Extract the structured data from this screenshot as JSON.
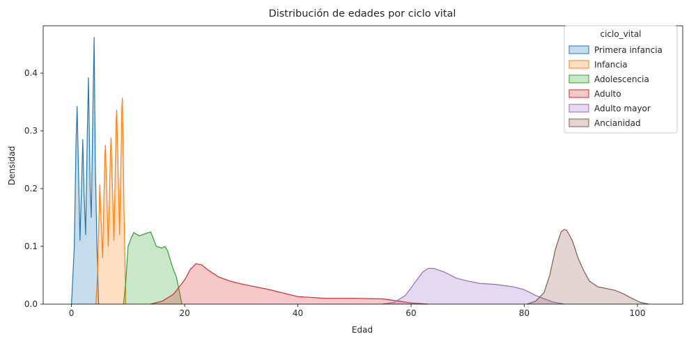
{
  "chart_data": {
    "type": "area",
    "title": "Distribución de edades por ciclo vital",
    "xlabel": "Edad",
    "ylabel": "Densidad",
    "xlim": [
      -5,
      108
    ],
    "ylim": [
      0,
      0.482
    ],
    "xticks": [
      0,
      20,
      40,
      60,
      80,
      100
    ],
    "yticks": [
      0.0,
      0.1,
      0.2,
      0.3,
      0.4
    ],
    "xtick_labels": [
      "0",
      "20",
      "40",
      "60",
      "80",
      "100"
    ],
    "ytick_labels": [
      "0.0",
      "0.1",
      "0.2",
      "0.3",
      "0.4"
    ],
    "grid": false,
    "legend": {
      "title": "ciclo_vital",
      "placement": "top-right"
    },
    "series": [
      {
        "name": "Primera infancia",
        "color": "#1f77b4",
        "x": [
          0.0,
          0.5,
          0.8,
          1.0,
          1.5,
          1.9,
          2.0,
          2.2,
          2.5,
          2.8,
          3.0,
          3.3,
          3.5,
          3.8,
          4.0,
          4.2,
          4.5,
          4.8
        ],
        "y": [
          0.0,
          0.1,
          0.28,
          0.342,
          0.11,
          0.25,
          0.285,
          0.2,
          0.12,
          0.3,
          0.392,
          0.2,
          0.15,
          0.35,
          0.462,
          0.25,
          0.1,
          0.0
        ]
      },
      {
        "name": "Infancia",
        "color": "#ff7f0e",
        "x": [
          4.3,
          4.6,
          5.0,
          5.5,
          5.9,
          6.0,
          6.5,
          6.9,
          7.0,
          7.5,
          7.9,
          8.0,
          8.5,
          8.9,
          9.0,
          9.3,
          9.6
        ],
        "y": [
          0.0,
          0.05,
          0.207,
          0.08,
          0.26,
          0.275,
          0.1,
          0.27,
          0.288,
          0.11,
          0.32,
          0.336,
          0.12,
          0.34,
          0.357,
          0.15,
          0.0
        ]
      },
      {
        "name": "Adolescencia",
        "color": "#2ca02c",
        "x": [
          9.2,
          9.6,
          10.0,
          10.5,
          11.0,
          12.0,
          13.0,
          14.0,
          15.0,
          16.0,
          16.5,
          17.0,
          17.5,
          18.0,
          18.5,
          19.0,
          19.5
        ],
        "y": [
          0.0,
          0.04,
          0.1,
          0.113,
          0.124,
          0.118,
          0.122,
          0.125,
          0.1,
          0.097,
          0.1,
          0.092,
          0.075,
          0.06,
          0.048,
          0.025,
          0.0
        ]
      },
      {
        "name": "Adulto",
        "color": "#d62728",
        "x": [
          14.0,
          16.0,
          18.0,
          20.0,
          21.0,
          22.0,
          23.0,
          24.0,
          26.0,
          28.0,
          30.0,
          35.0,
          40.0,
          45.0,
          50.0,
          55.0,
          58.0,
          60.0,
          63.0
        ],
        "y": [
          0.0,
          0.005,
          0.017,
          0.042,
          0.06,
          0.07,
          0.068,
          0.06,
          0.047,
          0.04,
          0.035,
          0.025,
          0.013,
          0.01,
          0.01,
          0.009,
          0.005,
          0.002,
          0.0
        ]
      },
      {
        "name": "Adulto mayor",
        "color": "#9467bd",
        "x": [
          55.0,
          57.0,
          59.0,
          60.5,
          62.0,
          63.0,
          64.0,
          66.0,
          68.0,
          70.0,
          72.0,
          75.0,
          78.0,
          80.0,
          82.0,
          85.0,
          87.0
        ],
        "y": [
          0.0,
          0.003,
          0.015,
          0.035,
          0.055,
          0.062,
          0.062,
          0.055,
          0.045,
          0.04,
          0.036,
          0.034,
          0.03,
          0.025,
          0.015,
          0.004,
          0.0
        ]
      },
      {
        "name": "Ancianidad",
        "color": "#8c564b",
        "x": [
          80.5,
          82.0,
          83.5,
          84.5,
          85.5,
          86.5,
          87.0,
          87.5,
          88.5,
          89.5,
          90.5,
          91.5,
          93.0,
          94.5,
          96.0,
          97.5,
          99.0,
          100.5,
          102.0
        ],
        "y": [
          0.0,
          0.005,
          0.02,
          0.05,
          0.095,
          0.125,
          0.129,
          0.128,
          0.11,
          0.08,
          0.058,
          0.04,
          0.03,
          0.027,
          0.024,
          0.018,
          0.01,
          0.003,
          0.0
        ]
      }
    ]
  }
}
